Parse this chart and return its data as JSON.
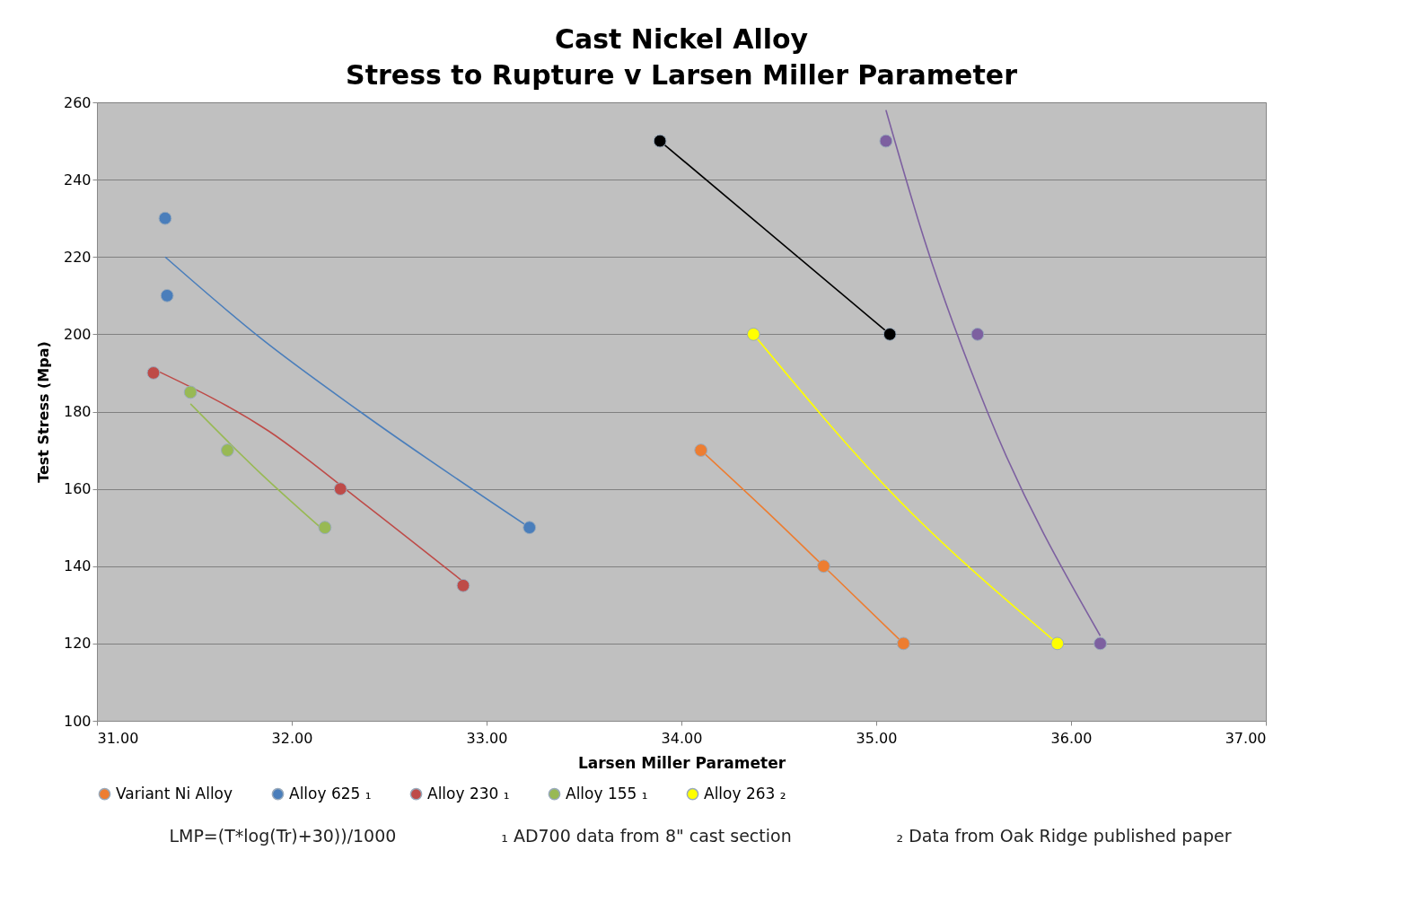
{
  "chart_data": {
    "type": "scatter",
    "title": "Cast Nickel Alloy",
    "subtitle": "Stress to Rupture v Larsen Miller Parameter",
    "xlabel": "Larsen Miller Parameter",
    "ylabel": "Test Stress (Mpa)",
    "xlim": [
      31,
      37
    ],
    "xticks": [
      {
        "value": 31,
        "label": "31.00"
      },
      {
        "value": 32,
        "label": "32.00"
      },
      {
        "value": 33,
        "label": "33.00"
      },
      {
        "value": 34,
        "label": "34.00"
      },
      {
        "value": 35,
        "label": "35.00"
      },
      {
        "value": 36,
        "label": "36.00"
      },
      {
        "value": 37,
        "label": "37.00"
      }
    ],
    "ylim": [
      100,
      260
    ],
    "yticks": [
      100,
      120,
      140,
      160,
      180,
      200,
      220,
      240,
      260
    ],
    "grid": "y",
    "legend": "bottom",
    "marker": "circle",
    "series": [
      {
        "name": "Variant Ni Alloy",
        "color": "#ed7d31",
        "x": [
          34.1,
          34.73,
          35.14
        ],
        "values": [
          170,
          140,
          120
        ]
      },
      {
        "name": "Alloy 625 ₁",
        "color": "#4a7ebb",
        "x": [
          31.35,
          31.36,
          33.22
        ],
        "values": [
          230,
          210,
          150
        ]
      },
      {
        "name": "Alloy 230 ₁",
        "color": "#be4b48",
        "x": [
          31.29,
          32.25,
          32.88
        ],
        "values": [
          190,
          160,
          135
        ]
      },
      {
        "name": "Alloy 155 ₁",
        "color": "#98b954",
        "x": [
          31.48,
          31.67,
          32.17
        ],
        "values": [
          185,
          170,
          150
        ]
      },
      {
        "color": "#7d60a0",
        "x": [
          35.05,
          35.52,
          36.15
        ],
        "values": [
          250,
          200,
          120
        ]
      },
      {
        "name": "Alloy 263 ₂",
        "color": "#ffff00",
        "x": [
          34.37,
          35.93
        ],
        "values": [
          200,
          120
        ]
      },
      {
        "color": "#000000",
        "x": [
          33.89,
          35.07
        ],
        "values": [
          250,
          200
        ]
      },
      {
        "color": "#ed7d31",
        "type": "line",
        "marker": "none",
        "x": [
          34.1,
          34.42,
          34.73,
          35.14
        ],
        "values": [
          170,
          155,
          140,
          120
        ]
      },
      {
        "color": "#4a7ebb",
        "type": "line",
        "marker": "none",
        "x": [
          31.35,
          31.84,
          32.35,
          33.22
        ],
        "values": [
          220,
          199,
          180,
          150
        ]
      },
      {
        "color": "#be4b48",
        "type": "line",
        "marker": "none",
        "x": [
          31.29,
          31.88,
          32.35,
          32.88
        ],
        "values": [
          191,
          175,
          157,
          136
        ]
      },
      {
        "color": "#98b954",
        "type": "line",
        "marker": "none",
        "x": [
          31.48,
          31.84,
          32.17
        ],
        "values": [
          182,
          164,
          149
        ]
      },
      {
        "color": "#7d60a0",
        "type": "line",
        "marker": "none",
        "x": [
          35.05,
          35.25,
          35.57,
          36.15
        ],
        "values": [
          258,
          224,
          180,
          122
        ]
      },
      {
        "color": "#ffff00",
        "type": "line",
        "marker": "none",
        "x": [
          34.37,
          35.06,
          35.93
        ],
        "values": [
          200,
          160,
          120
        ]
      },
      {
        "color": "#000000",
        "type": "line",
        "marker": "none",
        "x": [
          33.89,
          35.07
        ],
        "values": [
          250,
          200
        ]
      }
    ],
    "annotations": [
      "LMP=(T*log(Tr)+30))/1000",
      "₁ AD700 data from 8\" cast section",
      "₂ Data from Oak Ridge published paper"
    ]
  }
}
